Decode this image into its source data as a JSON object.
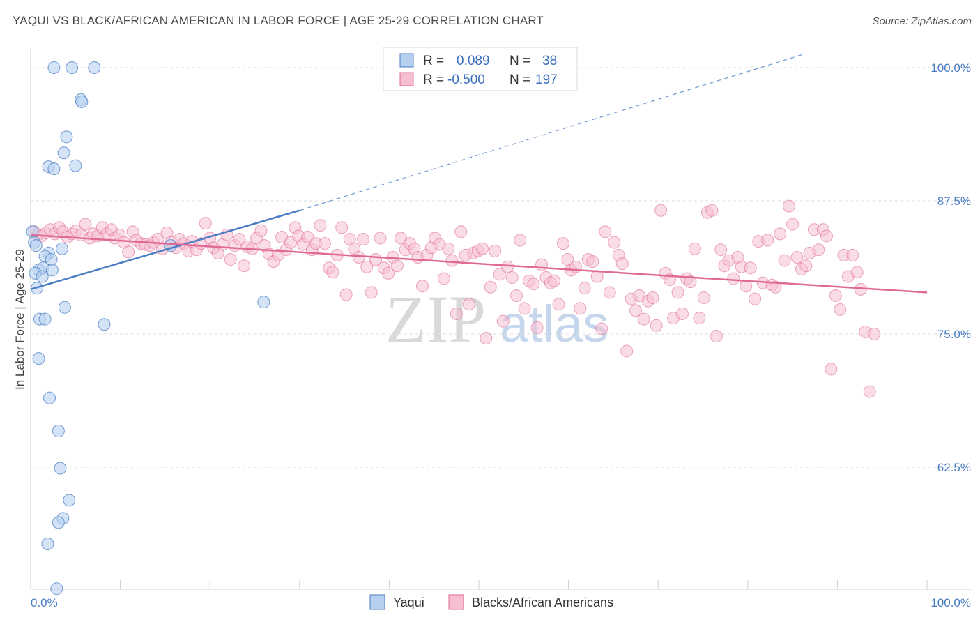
{
  "title": "YAQUI VS BLACK/AFRICAN AMERICAN IN LABOR FORCE | AGE 25-29 CORRELATION CHART",
  "source": "Source: ZipAtlas.com",
  "watermark": {
    "zip": "ZIP",
    "atlas": "atlas"
  },
  "legend": {
    "r_label": "R =",
    "n_label": "N =",
    "rows": [
      {
        "r": "0.089",
        "n": "38"
      },
      {
        "r": "-0.500",
        "n": "197"
      }
    ]
  },
  "bottom_legend": [
    "Yaqui",
    "Blacks/African Americans"
  ],
  "chart_data": {
    "type": "scatter",
    "title": "YAQUI VS BLACK/AFRICAN AMERICAN IN LABOR FORCE | AGE 25-29 CORRELATION CHART",
    "xlabel": "",
    "ylabel": "In Labor Force | Age 25-29",
    "xlim": [
      0,
      100
    ],
    "ylim": [
      50.5,
      102
    ],
    "x_tick_labels": [
      "0.0%",
      "100.0%"
    ],
    "y_ticks": [
      62.5,
      75.0,
      87.5,
      100.0
    ],
    "y_tick_labels": [
      "62.5%",
      "75.0%",
      "87.5%",
      "100.0%"
    ],
    "grid": true,
    "colors": {
      "yaqui": "#4a7cc4",
      "yaqui_fill": "#b8d0f0",
      "black": "#e06a94",
      "black_fill": "#f6bfd1",
      "tick_text": "#4a7cc4"
    },
    "series": [
      {
        "name": "Yaqui",
        "R": 0.089,
        "N": 38,
        "trend": {
          "x": [
            0,
            30
          ],
          "y": [
            79.2,
            86.6
          ],
          "extend_to": [
            86,
            101.2
          ]
        },
        "points": [
          [
            2.6,
            100
          ],
          [
            4.6,
            100
          ],
          [
            7.1,
            100
          ],
          [
            5.6,
            97
          ],
          [
            5.7,
            96.8
          ],
          [
            4.0,
            93.5
          ],
          [
            3.7,
            92
          ],
          [
            2.0,
            90.7
          ],
          [
            2.6,
            90.5
          ],
          [
            5.0,
            90.8
          ],
          [
            0.2,
            84.6
          ],
          [
            0.4,
            83.6
          ],
          [
            0.6,
            83.3
          ],
          [
            3.5,
            83
          ],
          [
            2.0,
            82.6
          ],
          [
            1.6,
            82.3
          ],
          [
            2.3,
            82
          ],
          [
            0.9,
            81
          ],
          [
            1.4,
            81.2
          ],
          [
            2.4,
            81
          ],
          [
            0.5,
            80.7
          ],
          [
            1.3,
            80.4
          ],
          [
            0.7,
            79.3
          ],
          [
            3.8,
            77.5
          ],
          [
            8.2,
            75.9
          ],
          [
            1.0,
            76.4
          ],
          [
            1.6,
            76.4
          ],
          [
            0.9,
            72.7
          ],
          [
            2.1,
            69
          ],
          [
            3.1,
            65.9
          ],
          [
            3.3,
            62.4
          ],
          [
            4.3,
            59.4
          ],
          [
            3.6,
            57.7
          ],
          [
            3.1,
            57.3
          ],
          [
            1.9,
            55.3
          ],
          [
            2.9,
            51.1
          ],
          [
            26,
            78
          ],
          [
            15.6,
            83.3
          ]
        ]
      },
      {
        "name": "Blacks/African Americans",
        "R": -0.5,
        "N": 197,
        "trend": {
          "x": [
            0,
            100
          ],
          "y": [
            84.3,
            78.9
          ]
        },
        "points": [
          [
            0.4,
            84.6
          ],
          [
            0.8,
            84.3
          ],
          [
            1.2,
            84.2
          ],
          [
            1.7,
            84.5
          ],
          [
            2.2,
            84.8
          ],
          [
            2.7,
            84.4
          ],
          [
            3.2,
            85.0
          ],
          [
            3.6,
            84.6
          ],
          [
            4.1,
            84.1
          ],
          [
            4.6,
            84.4
          ],
          [
            5.1,
            84.7
          ],
          [
            5.6,
            84.3
          ],
          [
            6.1,
            85.3
          ],
          [
            6.6,
            84.0
          ],
          [
            7.0,
            84.4
          ],
          [
            7.5,
            84.2
          ],
          [
            8.0,
            85.0
          ],
          [
            8.5,
            84.4
          ],
          [
            9.0,
            84.8
          ],
          [
            9.4,
            84.0
          ],
          [
            9.9,
            84.3
          ],
          [
            10.4,
            83.6
          ],
          [
            10.9,
            82.7
          ],
          [
            11.4,
            84.6
          ],
          [
            11.8,
            83.8
          ],
          [
            12.3,
            83.5
          ],
          [
            12.8,
            83.4
          ],
          [
            13.3,
            83.3
          ],
          [
            13.7,
            83.6
          ],
          [
            14.2,
            83.9
          ],
          [
            14.7,
            83.0
          ],
          [
            15.2,
            84.5
          ],
          [
            15.7,
            83.6
          ],
          [
            16.2,
            83.1
          ],
          [
            16.6,
            83.9
          ],
          [
            17.1,
            83.5
          ],
          [
            17.6,
            82.8
          ],
          [
            18.0,
            83.7
          ],
          [
            18.5,
            82.9
          ],
          [
            19.0,
            83.5
          ],
          [
            19.5,
            85.4
          ],
          [
            20.0,
            84.0
          ],
          [
            20.4,
            83.1
          ],
          [
            20.9,
            82.6
          ],
          [
            21.4,
            83.4
          ],
          [
            21.9,
            84.3
          ],
          [
            22.3,
            82.0
          ],
          [
            22.8,
            83.3
          ],
          [
            23.3,
            83.9
          ],
          [
            23.8,
            81.4
          ],
          [
            24.2,
            83.2
          ],
          [
            24.7,
            83.0
          ],
          [
            25.2,
            84.0
          ],
          [
            25.7,
            84.7
          ],
          [
            26.1,
            83.3
          ],
          [
            26.6,
            82.5
          ],
          [
            27.1,
            81.8
          ],
          [
            27.6,
            82.4
          ],
          [
            28.0,
            84.1
          ],
          [
            28.5,
            82.9
          ],
          [
            29.0,
            83.6
          ],
          [
            29.5,
            85.0
          ],
          [
            29.9,
            84.2
          ],
          [
            30.4,
            83.4
          ],
          [
            30.9,
            84.1
          ],
          [
            31.4,
            82.9
          ],
          [
            31.8,
            83.5
          ],
          [
            32.3,
            85.2
          ],
          [
            32.8,
            83.5
          ],
          [
            33.3,
            81.2
          ],
          [
            33.7,
            80.8
          ],
          [
            34.2,
            82.4
          ],
          [
            34.7,
            85.0
          ],
          [
            35.2,
            78.7
          ],
          [
            35.6,
            83.9
          ],
          [
            36.1,
            83.0
          ],
          [
            36.6,
            82.2
          ],
          [
            37.1,
            83.9
          ],
          [
            37.5,
            81.3
          ],
          [
            38.0,
            78.9
          ],
          [
            38.5,
            82.0
          ],
          [
            39.0,
            84.0
          ],
          [
            39.4,
            81.2
          ],
          [
            39.9,
            80.7
          ],
          [
            40.4,
            82.2
          ],
          [
            40.9,
            81.4
          ],
          [
            41.3,
            84.0
          ],
          [
            41.8,
            82.9
          ],
          [
            42.3,
            83.5
          ],
          [
            42.8,
            83.0
          ],
          [
            43.2,
            82.2
          ],
          [
            43.7,
            79.5
          ],
          [
            44.2,
            82.4
          ],
          [
            44.7,
            83.1
          ],
          [
            45.1,
            84.0
          ],
          [
            45.6,
            83.4
          ],
          [
            46.1,
            80.2
          ],
          [
            46.6,
            83.0
          ],
          [
            47.0,
            81.9
          ],
          [
            47.5,
            76.9
          ],
          [
            48.0,
            84.6
          ],
          [
            48.5,
            82.4
          ],
          [
            48.9,
            77.8
          ],
          [
            49.4,
            82.6
          ],
          [
            49.9,
            82.8
          ],
          [
            50.4,
            83.0
          ],
          [
            50.8,
            74.6
          ],
          [
            51.3,
            79.4
          ],
          [
            51.8,
            82.8
          ],
          [
            52.3,
            80.6
          ],
          [
            52.7,
            76.2
          ],
          [
            53.2,
            81.3
          ],
          [
            53.7,
            80.3
          ],
          [
            54.2,
            78.6
          ],
          [
            54.6,
            83.8
          ],
          [
            55.1,
            77.4
          ],
          [
            55.6,
            80.0
          ],
          [
            56.1,
            79.7
          ],
          [
            56.5,
            75.6
          ],
          [
            57.0,
            81.5
          ],
          [
            57.5,
            80.3
          ],
          [
            58.0,
            79.8
          ],
          [
            58.4,
            80.0
          ],
          [
            58.9,
            77.8
          ],
          [
            59.4,
            83.5
          ],
          [
            59.9,
            82.0
          ],
          [
            60.3,
            81.0
          ],
          [
            60.8,
            81.3
          ],
          [
            61.3,
            77.4
          ],
          [
            61.8,
            79.3
          ],
          [
            62.2,
            82.0
          ],
          [
            62.7,
            81.8
          ],
          [
            63.2,
            80.4
          ],
          [
            63.7,
            75.5
          ],
          [
            64.1,
            84.6
          ],
          [
            64.6,
            78.9
          ],
          [
            65.1,
            83.6
          ],
          [
            65.6,
            82.4
          ],
          [
            66.0,
            81.6
          ],
          [
            66.5,
            73.4
          ],
          [
            67.0,
            78.3
          ],
          [
            67.5,
            77.2
          ],
          [
            67.9,
            78.6
          ],
          [
            68.4,
            76.4
          ],
          [
            68.9,
            78.1
          ],
          [
            69.4,
            78.4
          ],
          [
            69.8,
            75.8
          ],
          [
            70.3,
            86.6
          ],
          [
            70.8,
            80.7
          ],
          [
            71.3,
            80.1
          ],
          [
            71.7,
            76.5
          ],
          [
            72.2,
            78.9
          ],
          [
            72.7,
            76.9
          ],
          [
            73.2,
            80.2
          ],
          [
            73.6,
            79.9
          ],
          [
            74.1,
            83.0
          ],
          [
            74.6,
            76.5
          ],
          [
            75.1,
            78.4
          ],
          [
            75.5,
            86.4
          ],
          [
            76.0,
            86.6
          ],
          [
            76.5,
            74.8
          ],
          [
            77.0,
            82.9
          ],
          [
            77.4,
            81.4
          ],
          [
            77.9,
            81.9
          ],
          [
            78.4,
            80.2
          ],
          [
            78.9,
            82.2
          ],
          [
            79.3,
            81.3
          ],
          [
            79.8,
            79.5
          ],
          [
            80.3,
            81.2
          ],
          [
            80.8,
            78.3
          ],
          [
            81.2,
            83.7
          ],
          [
            81.7,
            79.8
          ],
          [
            82.2,
            83.8
          ],
          [
            82.7,
            79.6
          ],
          [
            83.1,
            79.4
          ],
          [
            83.6,
            84.4
          ],
          [
            84.1,
            81.9
          ],
          [
            84.6,
            87.0
          ],
          [
            85.0,
            85.3
          ],
          [
            85.5,
            82.2
          ],
          [
            86.0,
            81.1
          ],
          [
            86.5,
            81.4
          ],
          [
            86.9,
            82.6
          ],
          [
            87.4,
            84.8
          ],
          [
            87.9,
            82.9
          ],
          [
            88.4,
            84.8
          ],
          [
            88.8,
            84.2
          ],
          [
            89.3,
            71.7
          ],
          [
            89.8,
            78.6
          ],
          [
            90.3,
            77.3
          ],
          [
            90.7,
            82.4
          ],
          [
            91.2,
            80.4
          ],
          [
            91.7,
            82.4
          ],
          [
            92.2,
            80.8
          ],
          [
            92.6,
            79.2
          ],
          [
            93.1,
            75.2
          ],
          [
            93.6,
            69.6
          ],
          [
            94.1,
            75.0
          ]
        ]
      }
    ]
  }
}
